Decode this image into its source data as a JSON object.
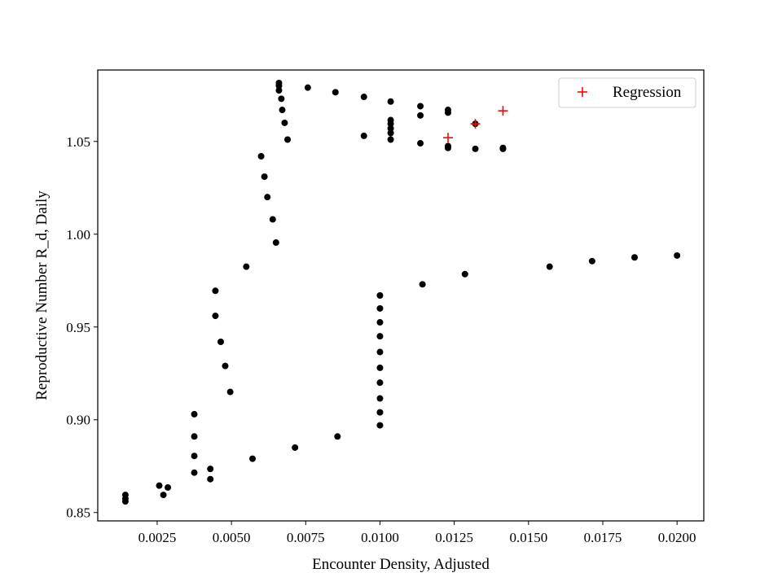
{
  "chart_data": {
    "type": "scatter",
    "title": "",
    "xlabel": "Encounter Density, Adjusted",
    "ylabel": "Reproductive Number R_d, Daily",
    "xlim": [
      0.0005,
      0.0209
    ],
    "ylim": [
      0.8455,
      1.0885
    ],
    "x_ticks": [
      0.0025,
      0.005,
      0.0075,
      0.01,
      0.0125,
      0.015,
      0.0175,
      0.02
    ],
    "x_tick_labels": [
      "0.0025",
      "0.0050",
      "0.0075",
      "0.0100",
      "0.0125",
      "0.0150",
      "0.0175",
      "0.0200"
    ],
    "y_ticks": [
      0.85,
      0.9,
      0.95,
      1.0,
      1.05
    ],
    "y_tick_labels": [
      "0.85",
      "0.90",
      "0.95",
      "1.00",
      "1.05"
    ],
    "grid": false,
    "legend_position": "top-right",
    "series": [
      {
        "marker": "dot",
        "color": "#000000",
        "points": [
          [
            0.00143,
            0.8595
          ],
          [
            0.00143,
            0.8575
          ],
          [
            0.00143,
            0.856
          ],
          [
            0.00257,
            0.8645
          ],
          [
            0.00271,
            0.8595
          ],
          [
            0.00286,
            0.8635
          ],
          [
            0.00375,
            0.903
          ],
          [
            0.00375,
            0.891
          ],
          [
            0.00375,
            0.8805
          ],
          [
            0.00375,
            0.8715
          ],
          [
            0.00429,
            0.8735
          ],
          [
            0.00429,
            0.868
          ],
          [
            0.00446,
            0.9695
          ],
          [
            0.00446,
            0.956
          ],
          [
            0.00464,
            0.942
          ],
          [
            0.00479,
            0.929
          ],
          [
            0.00496,
            0.915
          ],
          [
            0.0055,
            0.9825
          ],
          [
            0.00571,
            0.879
          ],
          [
            0.006,
            1.042
          ],
          [
            0.00611,
            1.031
          ],
          [
            0.00621,
            1.02
          ],
          [
            0.00639,
            1.008
          ],
          [
            0.0065,
            0.9955
          ],
          [
            0.0066,
            1.0815
          ],
          [
            0.0066,
            1.08
          ],
          [
            0.0066,
            1.0775
          ],
          [
            0.00668,
            1.073
          ],
          [
            0.00671,
            1.067
          ],
          [
            0.00679,
            1.06
          ],
          [
            0.00689,
            1.051
          ],
          [
            0.00714,
            0.885
          ],
          [
            0.00757,
            1.079
          ],
          [
            0.0085,
            1.0765
          ],
          [
            0.00857,
            0.891
          ],
          [
            0.00946,
            1.074
          ],
          [
            0.00946,
            1.053
          ],
          [
            0.01,
            0.967
          ],
          [
            0.01,
            0.96
          ],
          [
            0.01,
            0.9525
          ],
          [
            0.01,
            0.945
          ],
          [
            0.01,
            0.9365
          ],
          [
            0.01,
            0.928
          ],
          [
            0.01,
            0.92
          ],
          [
            0.01,
            0.9115
          ],
          [
            0.01,
            0.904
          ],
          [
            0.01,
            0.897
          ],
          [
            0.01036,
            1.0715
          ],
          [
            0.01036,
            1.0615
          ],
          [
            0.01036,
            1.0595
          ],
          [
            0.01036,
            1.057
          ],
          [
            0.01036,
            1.0545
          ],
          [
            0.01036,
            1.051
          ],
          [
            0.01136,
            1.069
          ],
          [
            0.01136,
            1.064
          ],
          [
            0.01136,
            1.049
          ],
          [
            0.01143,
            0.973
          ],
          [
            0.01229,
            1.067
          ],
          [
            0.01229,
            1.0655
          ],
          [
            0.01229,
            1.0475
          ],
          [
            0.01229,
            1.0465
          ],
          [
            0.01286,
            0.9785
          ],
          [
            0.01321,
            1.0595
          ],
          [
            0.01321,
            1.046
          ],
          [
            0.01414,
            1.0465
          ],
          [
            0.01414,
            1.046
          ],
          [
            0.01571,
            0.9825
          ],
          [
            0.01714,
            0.9855
          ],
          [
            0.01857,
            0.9875
          ],
          [
            0.02,
            0.9885
          ]
        ]
      },
      {
        "name": "Regression",
        "marker": "plus",
        "color": "#ff0000",
        "points": [
          [
            0.01229,
            1.052
          ],
          [
            0.01321,
            1.0595
          ],
          [
            0.01414,
            1.0665
          ]
        ]
      }
    ]
  }
}
